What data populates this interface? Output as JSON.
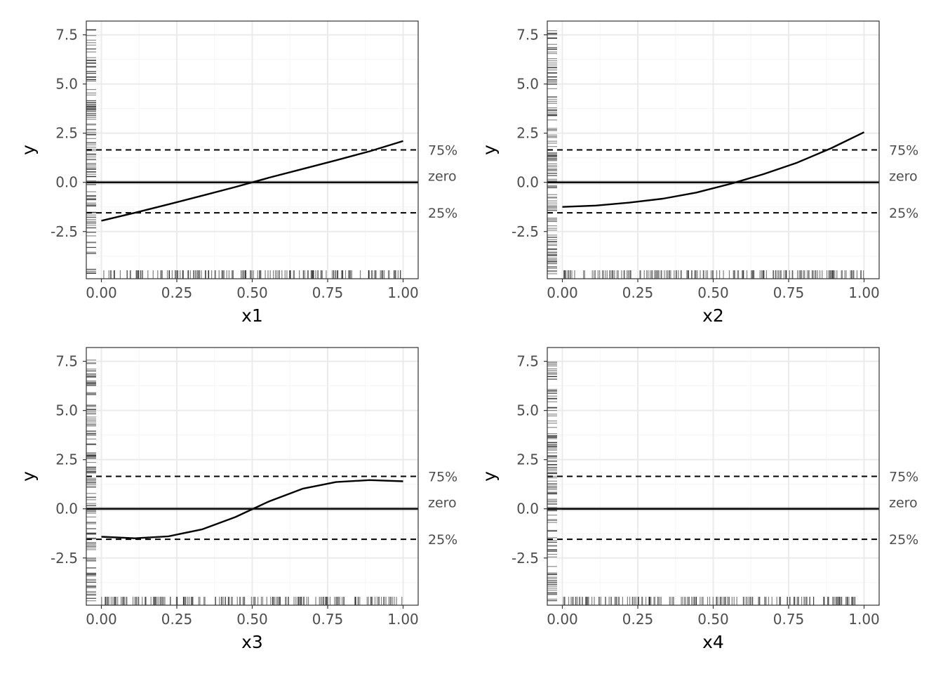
{
  "chart_data": [
    {
      "type": "line",
      "xlabel": "x1",
      "ylabel": "y",
      "xlim": [
        0,
        1
      ],
      "ylim": [
        -4.9,
        8.2
      ],
      "xticks": [
        "0.00",
        "0.25",
        "0.50",
        "0.75",
        "1.00"
      ],
      "yticks": [
        "-2.5",
        "0.0",
        "2.5",
        "5.0",
        "7.5"
      ],
      "grid": true,
      "x": [
        0,
        0.111,
        0.222,
        0.333,
        0.444,
        0.556,
        0.667,
        0.778,
        0.889,
        1.0
      ],
      "y": [
        -1.95,
        -1.55,
        -1.12,
        -0.68,
        -0.24,
        0.24,
        0.68,
        1.12,
        1.58,
        2.1
      ],
      "reference_lines": [
        {
          "label": "75%",
          "value": 1.65,
          "style": "dashed"
        },
        {
          "label": "zero",
          "value": 0.0,
          "style": "solid"
        },
        {
          "label": "25%",
          "value": -1.55,
          "style": "dashed"
        }
      ]
    },
    {
      "type": "line",
      "xlabel": "x2",
      "ylabel": "y",
      "xlim": [
        0,
        1
      ],
      "ylim": [
        -4.9,
        8.2
      ],
      "xticks": [
        "0.00",
        "0.25",
        "0.50",
        "0.75",
        "1.00"
      ],
      "yticks": [
        "-2.5",
        "0.0",
        "2.5",
        "5.0",
        "7.5"
      ],
      "grid": true,
      "x": [
        0,
        0.111,
        0.222,
        0.333,
        0.444,
        0.556,
        0.667,
        0.778,
        0.889,
        1.0
      ],
      "y": [
        -1.25,
        -1.18,
        -1.03,
        -0.83,
        -0.52,
        -0.08,
        0.42,
        1.0,
        1.72,
        2.55
      ],
      "reference_lines": [
        {
          "label": "75%",
          "value": 1.65,
          "style": "dashed"
        },
        {
          "label": "zero",
          "value": 0.0,
          "style": "solid"
        },
        {
          "label": "25%",
          "value": -1.55,
          "style": "dashed"
        }
      ]
    },
    {
      "type": "line",
      "xlabel": "x3",
      "ylabel": "y",
      "xlim": [
        0,
        1
      ],
      "ylim": [
        -4.9,
        8.2
      ],
      "xticks": [
        "0.00",
        "0.25",
        "0.50",
        "0.75",
        "1.00"
      ],
      "yticks": [
        "-2.5",
        "0.0",
        "2.5",
        "5.0",
        "7.5"
      ],
      "grid": true,
      "x": [
        0,
        0.111,
        0.222,
        0.333,
        0.444,
        0.556,
        0.667,
        0.778,
        0.889,
        1.0
      ],
      "y": [
        -1.42,
        -1.5,
        -1.4,
        -1.05,
        -0.42,
        0.38,
        1.02,
        1.36,
        1.46,
        1.4
      ],
      "reference_lines": [
        {
          "label": "75%",
          "value": 1.65,
          "style": "dashed"
        },
        {
          "label": "zero",
          "value": 0.0,
          "style": "solid"
        },
        {
          "label": "25%",
          "value": -1.55,
          "style": "dashed"
        }
      ]
    },
    {
      "type": "line",
      "xlabel": "x4",
      "ylabel": "y",
      "xlim": [
        0,
        1
      ],
      "ylim": [
        -4.9,
        8.2
      ],
      "xticks": [
        "0.00",
        "0.25",
        "0.50",
        "0.75",
        "1.00"
      ],
      "yticks": [
        "-2.5",
        "0.0",
        "2.5",
        "5.0",
        "7.5"
      ],
      "grid": true,
      "x": [
        0,
        1.0
      ],
      "y": [
        0,
        0
      ],
      "reference_lines": [
        {
          "label": "75%",
          "value": 1.65,
          "style": "dashed"
        },
        {
          "label": "zero",
          "value": 0.0,
          "style": "solid"
        },
        {
          "label": "25%",
          "value": -1.55,
          "style": "dashed"
        }
      ]
    }
  ],
  "colors": {
    "panel_border": "#333333",
    "grid_major": "#ebebeb",
    "grid_minor": "#f5f5f5",
    "line": "#000000",
    "tick_label": "#4d4d4d",
    "rug": "#000000"
  }
}
